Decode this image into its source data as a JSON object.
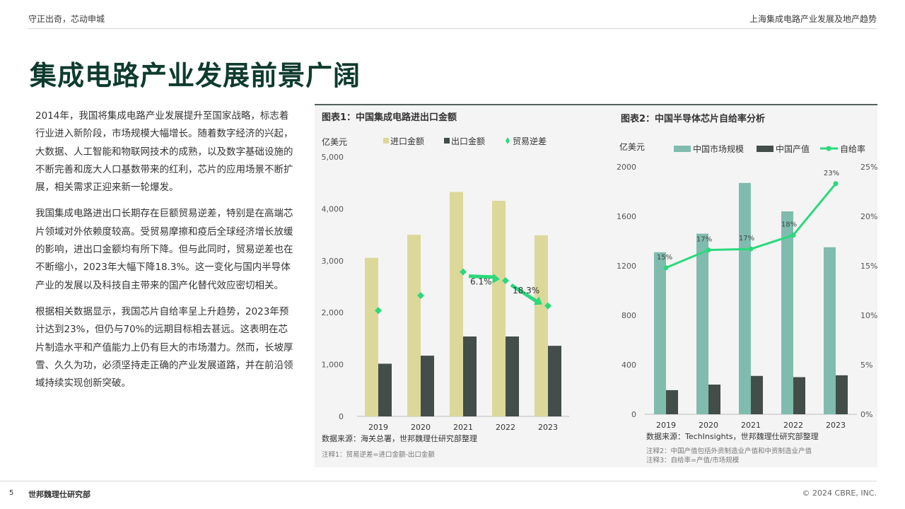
{
  "header": {
    "left": "守正出奇，芯动申城",
    "right": "上海集成电路产业发展及地产趋势"
  },
  "title": "集成电路产业发展前景广阔",
  "paragraphs": [
    "2014年，我国将集成电路产业发展提升至国家战略，标志着行业进入新阶段，市场规模大幅增长。随着数字经济的兴起，大数据、人工智能和物联网技术的成熟，以及数字基础设施的不断完善和庞大人口基数带来的红利，芯片的应用场景不断扩展，相关需求正迎来新一轮爆发。",
    "我国集成电路进出口长期存在巨额贸易逆差，特别是在高端芯片领域对外依赖度较高。受贸易摩擦和疫后全球经济增长放缓的影响，进出口金额均有所下降。但与此同时，贸易逆差也在不断缩小，2023年大幅下降18.3%。这一变化与国内半导体产业的发展以及科技自主带来的国产化替代效应密切相关。",
    "根据相关数据显示，我国芯片自给率呈上升趋势，2023年预计达到23%，但仍与70%的远期目标相去甚远。这表明在芯片制造水平和产值能力上仍有巨大的市场潜力。然而，长坡厚雪、久久为功，必须坚持走正确的产业发展道路，并在前沿领域持续实现创新突破。"
  ],
  "colors": {
    "import": "#dcd89a",
    "export": "#434d4a",
    "balance": "#2bd97c",
    "market": "#7fbcae",
    "output": "#434d4a",
    "ratio": "#2bd97c",
    "title": "#0e3b2e"
  },
  "chart_data": [
    {
      "type": "bar",
      "title": "图表1：中国集成电路进出口金额",
      "ylabel": "亿美元",
      "categories": [
        "2019",
        "2020",
        "2021",
        "2022",
        "2023"
      ],
      "ylim": [
        0,
        5000
      ],
      "yticks": [
        "0",
        "1,000",
        "2,000",
        "3,000",
        "4,000",
        "5,000"
      ],
      "series": [
        {
          "name": "进口金额",
          "kind": "bar",
          "values": [
            3055,
            3500,
            4325,
            4155,
            3490
          ]
        },
        {
          "name": "出口金额",
          "kind": "bar",
          "values": [
            1015,
            1170,
            1540,
            1540,
            1360
          ]
        },
        {
          "name": "贸易逆差",
          "kind": "marker",
          "values": [
            2040,
            2330,
            2785,
            2615,
            2130
          ]
        }
      ],
      "annotations": [
        "6.1%",
        "18.3%"
      ],
      "source": "数据来源：海关总署，世邦魏理仕研究部整理",
      "notes": [
        "注释1：贸易逆差=进口金额-出口金额"
      ]
    },
    {
      "type": "bar",
      "title": "图表2：中国半导体芯片自给率分析",
      "ylabel": "亿美元",
      "categories": [
        "2019",
        "2020",
        "2021",
        "2022",
        "2023"
      ],
      "ylim": [
        0,
        2000
      ],
      "yticks": [
        "0",
        "400",
        "800",
        "1200",
        "1600",
        "2000"
      ],
      "y2lim": [
        0,
        25
      ],
      "y2ticks": [
        "0%",
        "5%",
        "10%",
        "15%",
        "20%",
        "25%"
      ],
      "series": [
        {
          "name": "中国市场规模",
          "kind": "bar",
          "values": [
            1310,
            1460,
            1870,
            1640,
            1350
          ]
        },
        {
          "name": "中国产值",
          "kind": "bar",
          "values": [
            195,
            240,
            310,
            300,
            315
          ]
        },
        {
          "name": "自给率",
          "kind": "line",
          "axis": "right",
          "values": [
            14.8,
            16.6,
            16.7,
            18.1,
            23.3
          ],
          "labels": [
            "15%",
            "17%",
            "17%",
            "18%",
            "23%"
          ]
        }
      ],
      "source": "数据来源：TechInsights，世邦魏理仕研究部整理",
      "notes": [
        "注释2：中国产值包括外资制造业产值和中资制造业产值",
        "注释3：自给率=产值/市场规模"
      ]
    }
  ],
  "footer": {
    "page": "5",
    "org": "世邦魏理仕研究部",
    "copyright": "© 2024 CBRE, INC."
  }
}
